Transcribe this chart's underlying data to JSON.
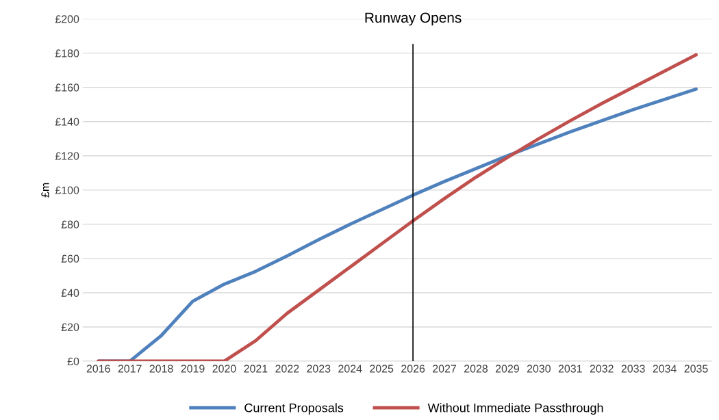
{
  "chart_data": {
    "type": "line",
    "ylabel": "£m",
    "categories": [
      "2016",
      "2017",
      "2018",
      "2019",
      "2020",
      "2021",
      "2022",
      "2023",
      "2024",
      "2025",
      "2026",
      "2027",
      "2028",
      "2029",
      "2030",
      "2031",
      "2032",
      "2033",
      "2034",
      "2035"
    ],
    "series": [
      {
        "name": "Current Proposals",
        "color": "#4f81bd",
        "values": [
          0,
          0,
          15,
          35,
          45,
          52.5,
          61.5,
          71,
          80,
          88.5,
          97,
          105,
          112.5,
          120,
          127,
          134,
          140.5,
          147,
          153,
          159
        ]
      },
      {
        "name": "Without Immediate Passthrough",
        "color": "#c0504d",
        "values": [
          0,
          0,
          0,
          0,
          0,
          12,
          28,
          41.5,
          55,
          68.5,
          82,
          95,
          107.5,
          119,
          130,
          140.5,
          150.5,
          160,
          169.5,
          179
        ]
      }
    ],
    "ylim": [
      0,
      200
    ],
    "yticks": [
      {
        "value": 0,
        "label": "£0"
      },
      {
        "value": 20,
        "label": "£20"
      },
      {
        "value": 40,
        "label": "£40"
      },
      {
        "value": 60,
        "label": "£60"
      },
      {
        "value": 80,
        "label": "£80"
      },
      {
        "value": 100,
        "label": "£100"
      },
      {
        "value": 120,
        "label": "£120"
      },
      {
        "value": 140,
        "label": "£140"
      },
      {
        "value": 160,
        "label": "£160"
      },
      {
        "value": 180,
        "label": "£180"
      },
      {
        "value": 200,
        "label": "£200"
      }
    ],
    "ref_lines": [
      {
        "axis": "x",
        "value": "2026",
        "label": "Runway Opens",
        "color": "#000000"
      }
    ],
    "grid": "y",
    "legend": "bottom",
    "marker": "none",
    "line_style": "solid"
  }
}
